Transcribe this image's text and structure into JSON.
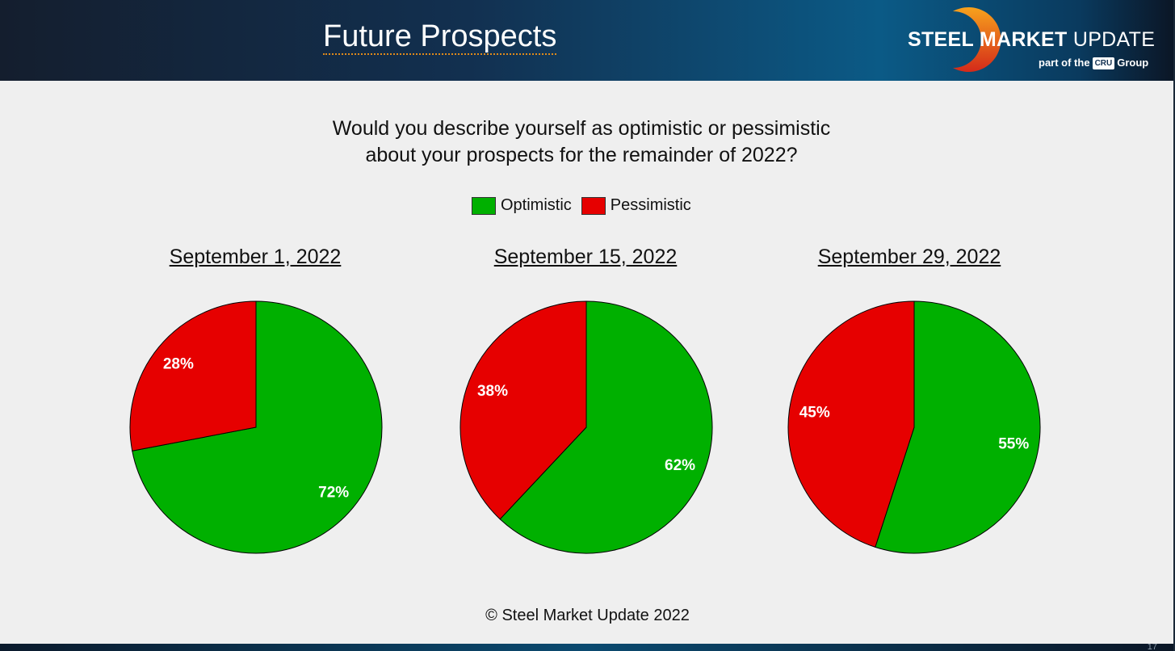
{
  "header": {
    "title": "Future Prospects",
    "logo_text_bold": "STEEL MARKET",
    "logo_text_light": " UPDATE",
    "logo_sub_prefix": "part of the",
    "logo_sub_badge": "CRU",
    "logo_sub_suffix": "Group"
  },
  "question_line1": "Would you describe yourself as optimistic or pessimistic",
  "question_line2": "about your prospects for the remainder of 2022?",
  "legend": [
    {
      "label": "Optimistic",
      "color": "#00b000"
    },
    {
      "label": "Pessimistic",
      "color": "#e60000"
    }
  ],
  "chart_data": [
    {
      "type": "pie",
      "title": "September 1, 2022",
      "slices": [
        {
          "name": "Optimistic",
          "value": 72,
          "label": "72%"
        },
        {
          "name": "Pessimistic",
          "value": 28,
          "label": "28%"
        }
      ]
    },
    {
      "type": "pie",
      "title": "September 15, 2022",
      "slices": [
        {
          "name": "Optimistic",
          "value": 62,
          "label": "62%"
        },
        {
          "name": "Pessimistic",
          "value": 38,
          "label": "38%"
        }
      ]
    },
    {
      "type": "pie",
      "title": "September 29, 2022",
      "slices": [
        {
          "name": "Optimistic",
          "value": 55,
          "label": "55%"
        },
        {
          "name": "Pessimistic",
          "value": 45,
          "label": "45%"
        }
      ]
    }
  ],
  "footer": "© Steel Market Update 2022",
  "page_number": "17"
}
